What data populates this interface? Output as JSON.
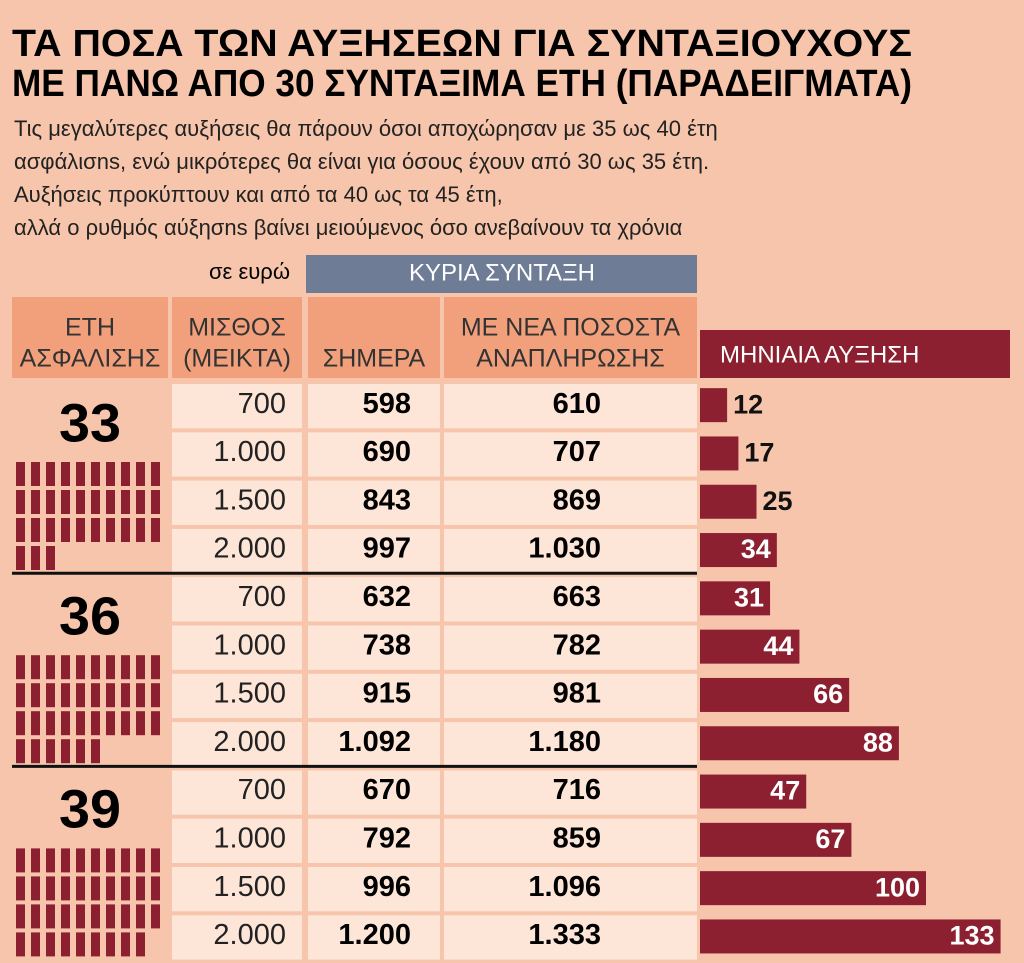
{
  "header": {
    "title": [
      "ΤΑ ΠΟΣΑ ΤΩΝ ΑΥΞΗΣΕΩΝ ΓΙΑ ΣΥΝΤΑΞΙΟΥΧΟΥΣ",
      "ΜΕ ΠΑΝΩ ΑΠΟ 30 ΣΥΝΤΑΞΙΜΑ ΕΤΗ (ΠΑΡΑΔΕΙΓΜΑΤΑ)"
    ],
    "subtitle": [
      "Τις μεγαλύτερες αυξήσεις θα πάρουν όσοι αποχώρησαν με 35 ως 40 έτη",
      "ασφάλισns, ενώ μικρότερες θα είναι για όσους έχουν από 30 ως 35 έτη.",
      "Αυξήσεις προκύπτουν και από τα 40 ως τα 45 έτη,",
      "αλλά ο ρυθμός αύξησns βαίνει μειούμενος όσο ανεβαίνουν τα χρόνια"
    ]
  },
  "table": {
    "unit_note": "σε ευρώ",
    "group_header": "ΚΥΡΙΑ ΣΥΝΤΑΞΗ",
    "columns": [
      [
        "ΕΤΗ",
        "ΑΣΦΑΛΙΣΗΣ"
      ],
      [
        "ΜΙΣΘΟΣ",
        "(ΜΕΙΚΤΑ)"
      ],
      [
        "ΣΗΜΕΡΑ"
      ],
      [
        "ΜΕ ΝΕΑ ΠΟΣΟΣΤΑ",
        "ΑΝΑΠΛΗΡΩΣΗΣ"
      ]
    ],
    "bar_header": "ΜΗΝΙΑΙΑ ΑΥΞΗΣΗ",
    "groups": [
      {
        "years": 33,
        "rows": [
          [
            "700",
            "598",
            "610",
            12
          ],
          [
            "1.000",
            "690",
            "707",
            17
          ],
          [
            "1.500",
            "843",
            "869",
            25
          ],
          [
            "2.000",
            "997",
            "1.030",
            34
          ]
        ]
      },
      {
        "years": 36,
        "rows": [
          [
            "700",
            "632",
            "663",
            31
          ],
          [
            "1.000",
            "738",
            "782",
            44
          ],
          [
            "1.500",
            "915",
            "981",
            66
          ],
          [
            "2.000",
            "1.092",
            "1.180",
            88
          ]
        ]
      },
      {
        "years": 39,
        "rows": [
          [
            "700",
            "670",
            "716",
            47
          ],
          [
            "1.000",
            "792",
            "859",
            67
          ],
          [
            "1.500",
            "996",
            "1.096",
            100
          ],
          [
            "2.000",
            "1.200",
            "1.333",
            133
          ]
        ]
      }
    ]
  }
}
